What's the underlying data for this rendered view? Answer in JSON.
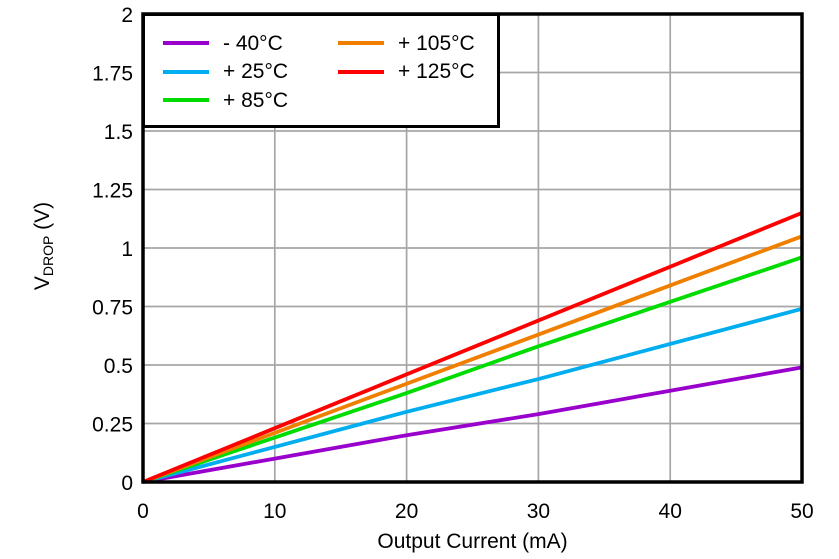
{
  "chart_data": {
    "type": "line",
    "title": "",
    "xlabel": "Output Current (mA)",
    "ylabel": "VDROP (V)",
    "ylabel_main": "V",
    "ylabel_sub": "DROP",
    "ylabel_unit": " (V)",
    "xlim": [
      0,
      50
    ],
    "ylim": [
      0,
      2
    ],
    "x_ticks": [
      0,
      10,
      20,
      30,
      40,
      50
    ],
    "x_tick_labels": [
      "0",
      "10",
      "20",
      "30",
      "40",
      "50"
    ],
    "y_ticks": [
      0,
      0.25,
      0.5,
      0.75,
      1,
      1.25,
      1.5,
      1.75,
      2
    ],
    "y_tick_labels": [
      "0",
      "0.25",
      "0.5",
      "0.75",
      "1",
      "1.25",
      "1.5",
      "1.75",
      "2"
    ],
    "grid": true,
    "legend_position": "top-left",
    "x": [
      0,
      10,
      20,
      30,
      40,
      50
    ],
    "series": [
      {
        "name": "- 40°C",
        "color": "#9900CC",
        "values": [
          0,
          0.1,
          0.2,
          0.29,
          0.39,
          0.49
        ]
      },
      {
        "name": "+ 25°C",
        "color": "#00AEEF",
        "values": [
          0,
          0.15,
          0.3,
          0.44,
          0.59,
          0.74
        ]
      },
      {
        "name": "+ 85°C",
        "color": "#00DC00",
        "values": [
          0,
          0.19,
          0.38,
          0.58,
          0.77,
          0.96
        ]
      },
      {
        "name": "+ 105°C",
        "color": "#F07F00",
        "values": [
          0,
          0.21,
          0.42,
          0.63,
          0.84,
          1.05
        ]
      },
      {
        "name": "+ 125°C",
        "color": "#FF0000",
        "values": [
          0,
          0.23,
          0.46,
          0.69,
          0.92,
          1.15
        ]
      }
    ],
    "legend_columns": [
      [
        0,
        1,
        2
      ],
      [
        3,
        4
      ]
    ]
  },
  "colors": {
    "grid": "#A6A6A6",
    "frame": "#000000",
    "background": "#FFFFFF",
    "text": "#000000"
  }
}
